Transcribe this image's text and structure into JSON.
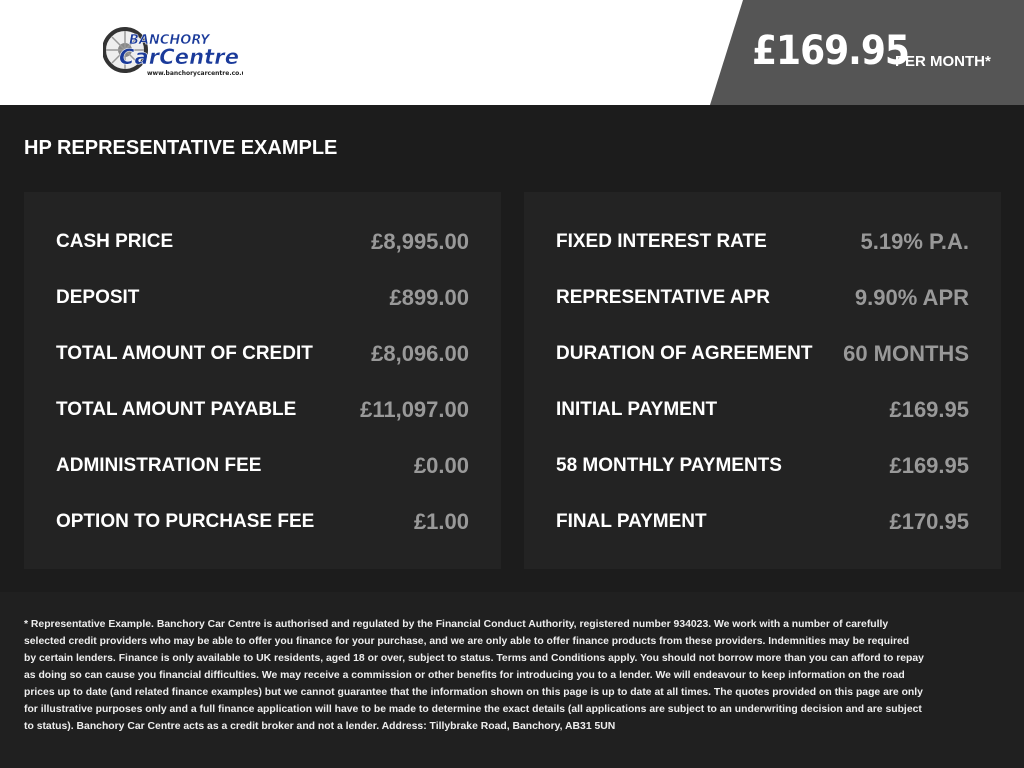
{
  "header": {
    "logo_text": "Banchory CarCentre",
    "logo_url": "www.banchorycarcentre.co.uk",
    "price": "£169.95",
    "price_suffix": "PER MONTH*"
  },
  "title": "HP REPRESENTATIVE EXAMPLE",
  "left": [
    {
      "label": "CASH PRICE",
      "value": "£8,995.00"
    },
    {
      "label": "DEPOSIT",
      "value": "£899.00"
    },
    {
      "label": "TOTAL AMOUNT OF CREDIT",
      "value": "£8,096.00"
    },
    {
      "label": "TOTAL AMOUNT PAYABLE",
      "value": "£11,097.00"
    },
    {
      "label": "ADMINISTRATION FEE",
      "value": "£0.00"
    },
    {
      "label": "OPTION TO PURCHASE FEE",
      "value": "£1.00"
    }
  ],
  "right": [
    {
      "label": "FIXED INTEREST RATE",
      "value": "5.19% P.A."
    },
    {
      "label": "REPRESENTATIVE APR",
      "value": "9.90% APR"
    },
    {
      "label": "DURATION OF AGREEMENT",
      "value": "60 MONTHS"
    },
    {
      "label": "INITIAL PAYMENT",
      "value": "£169.95"
    },
    {
      "label": "58 MONTHLY PAYMENTS",
      "value": "£169.95"
    },
    {
      "label": "FINAL PAYMENT",
      "value": "£170.95"
    }
  ],
  "footer": "* Representative Example. Banchory Car Centre is authorised and regulated by the Financial Conduct Authority, registered number 934023. We work with a number of carefully selected credit providers who may be able to offer you finance for your purchase, and we are only able to offer finance products from these providers. Indemnities may be required by certain lenders. Finance is only available to UK residents, aged 18 or over, subject to status. Terms and Conditions apply. You should not borrow more than you can afford to repay as doing so can cause you financial difficulties. We may receive a commission or other benefits for introducing you to a lender. We will endeavour to keep information on the road prices up to date (and related finance examples) but we cannot guarantee that the information shown on this page is up to date at all times. The quotes provided on this page are only for illustrative purposes only and a full finance application will have to be made to determine the exact details (all applications are subject to an underwriting decision and are subject to status). Banchory Car Centre acts as a credit broker and not a lender. Address: Tillybrake Road, Banchory, AB31 5UN"
}
